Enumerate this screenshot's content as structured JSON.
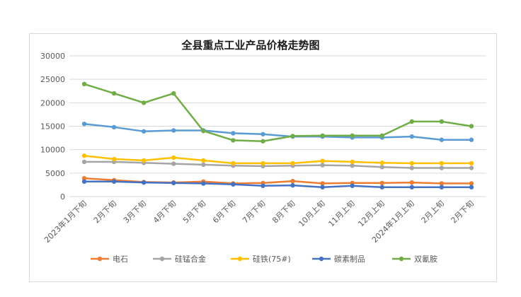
{
  "chart_data": {
    "type": "line",
    "title": "全县重点工业产品价格走势图",
    "xlabel": "",
    "ylabel": "",
    "ylim": [
      0,
      30000
    ],
    "yticks": [
      0,
      5000,
      10000,
      15000,
      20000,
      25000,
      30000
    ],
    "grid": true,
    "legend": "bottom",
    "categories": [
      "2023年1月下旬",
      "2月下旬",
      "3月下旬",
      "4月下旬",
      "5月下旬",
      "6月下旬",
      "7月下旬",
      "8月下旬",
      "10月上旬",
      "11月上旬",
      "12月上旬",
      "2024年1月上旬",
      "2月上旬",
      "2月下旬"
    ],
    "series": [
      {
        "name": "电石",
        "color": "#ed7d31",
        "values": [
          3900,
          3500,
          3100,
          3000,
          3200,
          2800,
          2900,
          3300,
          2800,
          2900,
          2900,
          3000,
          2800,
          2800
        ]
      },
      {
        "name": "硅锰合金",
        "color": "#a5a5a5",
        "values": [
          7400,
          7400,
          7200,
          7000,
          6800,
          6600,
          6500,
          6600,
          6700,
          6600,
          6300,
          6100,
          6100,
          6100
        ]
      },
      {
        "name": "硅铁(75#)",
        "color": "#ffc000",
        "values": [
          8700,
          8000,
          7700,
          8300,
          7700,
          7100,
          7100,
          7100,
          7600,
          7400,
          7200,
          7100,
          7100,
          7100
        ]
      },
      {
        "name": "碳素制品",
        "color": "#4472c4",
        "values": [
          3200,
          3200,
          3000,
          2900,
          2800,
          2600,
          2300,
          2400,
          2000,
          2300,
          2000,
          2000,
          2000,
          2000
        ]
      },
      {
        "name": "双氰胺",
        "color": "#70ad47",
        "values": [
          24000,
          22000,
          20000,
          22000,
          14000,
          12000,
          11800,
          12900,
          13000,
          13000,
          13000,
          16000,
          16000,
          15000
        ]
      },
      {
        "name": "",
        "color": "#5b9bd5",
        "legend": false,
        "values": [
          15500,
          14800,
          13900,
          14100,
          14100,
          13500,
          13300,
          12800,
          12800,
          12600,
          12600,
          12800,
          12100,
          12100
        ]
      }
    ]
  }
}
